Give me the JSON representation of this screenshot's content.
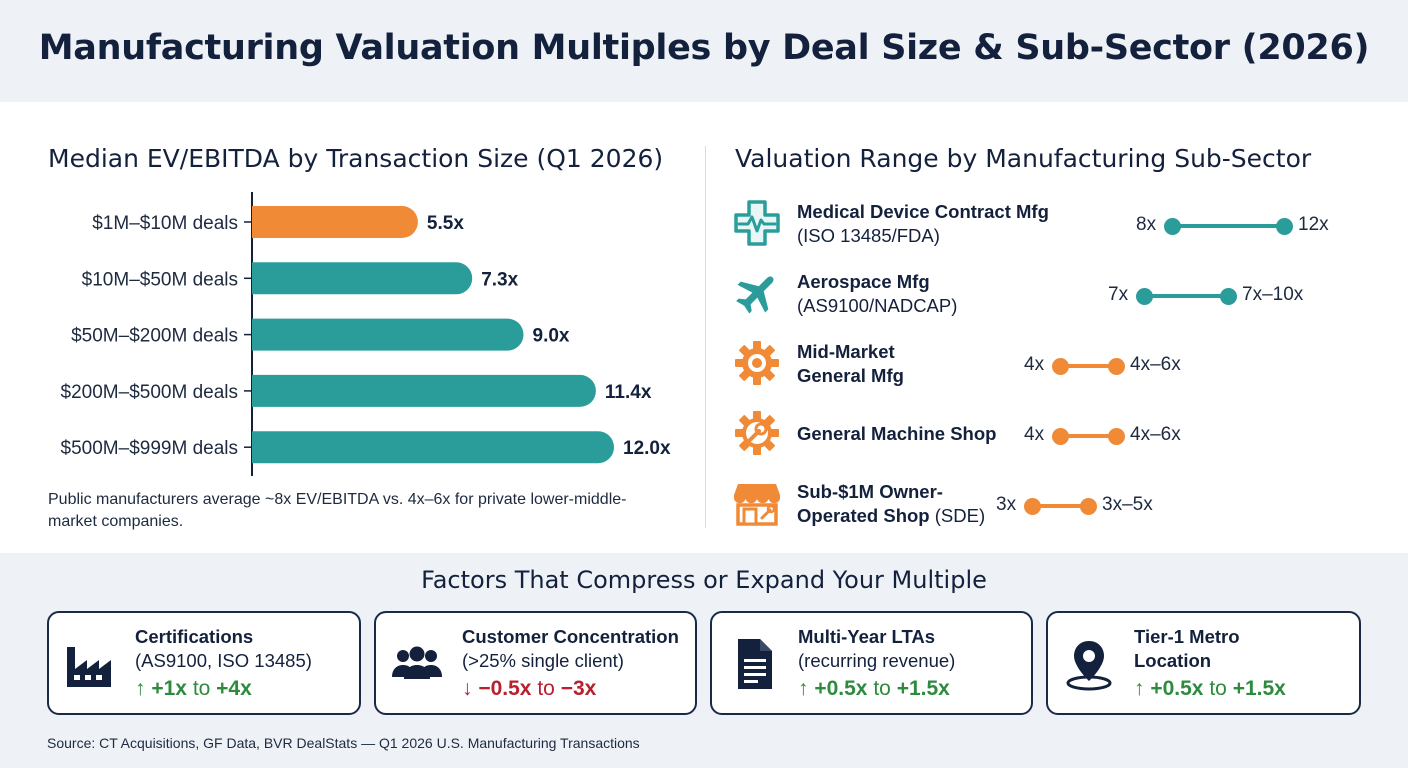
{
  "title": "Manufacturing Valuation Multiples by Deal Size & Sub-Sector (2026)",
  "colors": {
    "navy": "#14213d",
    "teal": "#2a9d9a",
    "orange": "#f08a36",
    "green": "#2e8b3e",
    "red": "#b8202e",
    "band": "#eef2f7"
  },
  "chart_data": [
    {
      "type": "bar",
      "orientation": "horizontal",
      "title": "Median EV/EBITDA by Transaction Size (Q1 2026)",
      "categories": [
        "$1M–$10M deals",
        "$10M–$50M deals",
        "$50M–$200M deals",
        "$200M–$500M deals",
        "$500M–$999M deals"
      ],
      "values": [
        5.5,
        7.3,
        9.0,
        11.4,
        12.0
      ],
      "value_labels": [
        "5.5x",
        "7.3x",
        "9.0x",
        "11.4x",
        "12.0x"
      ],
      "bar_colors": [
        "#f08a36",
        "#2a9d9a",
        "#2a9d9a",
        "#2a9d9a",
        "#2a9d9a"
      ],
      "xlim": [
        0,
        12
      ],
      "grid": false,
      "legend": "none"
    },
    {
      "type": "range",
      "title": "Valuation Range by Manufacturing Sub-Sector",
      "series": [
        {
          "name": "Medical Device Contract Mfg",
          "detail": "(ISO 13485/FDA)",
          "icon": "medical-cross-icon",
          "low": 8,
          "high": 12,
          "low_label": "8x",
          "high_label": "12x",
          "color": "#2a9d9a"
        },
        {
          "name": "Aerospace Mfg",
          "detail": "(AS9100/NADCAP)",
          "icon": "airplane-icon",
          "low": 7,
          "high": 10,
          "low_label": "7x",
          "high_label": "7x–10x",
          "color": "#2a9d9a"
        },
        {
          "name": "Mid-Market",
          "name2": "General Mfg",
          "detail": "",
          "icon": "gear-icon",
          "low": 4,
          "high": 6,
          "low_label": "4x",
          "high_label": "4x–6x",
          "color": "#f08a36"
        },
        {
          "name": "General Machine Shop",
          "detail": "",
          "icon": "gear-wrench-icon",
          "low": 4,
          "high": 6,
          "low_label": "4x",
          "high_label": "4x–6x",
          "color": "#f08a36"
        },
        {
          "name": "Sub-$1M Owner-",
          "name2": "Operated Shop",
          "detail": "(SDE)",
          "icon": "storefront-icon",
          "low": 3,
          "high": 5,
          "low_label": "3x",
          "high_label": "3x–5x",
          "color": "#f08a36"
        }
      ]
    }
  ],
  "note": "Public manufacturers average ~8x EV/EBITDA vs. 4x–6x for private lower-middle-market companies.",
  "factors": {
    "title": "Factors That Compress or Expand Your Multiple",
    "cards": [
      {
        "title": "Certifications",
        "subtitle": "(AS9100, ISO 13485)",
        "arrow": "↑",
        "from": "+1x",
        "to_word": "to",
        "to": "+4x",
        "direction": "up",
        "icon": "factory-icon"
      },
      {
        "title": "Customer Concentration",
        "subtitle": "(>25% single client)",
        "arrow": "↓",
        "from": "−0.5x",
        "to_word": "to",
        "to": "−3x",
        "direction": "down",
        "icon": "people-group-icon"
      },
      {
        "title": "Multi-Year LTAs",
        "subtitle": "(recurring revenue)",
        "arrow": "↑",
        "from": "+0.5x",
        "to_word": "to",
        "to": "+1.5x",
        "direction": "up",
        "icon": "document-icon"
      },
      {
        "title": "Tier-1 Metro",
        "subtitle": "Location",
        "arrow": "↑",
        "from": "+0.5x",
        "to_word": "to",
        "to": "+1.5x",
        "direction": "up",
        "icon": "location-pin-icon"
      }
    ]
  },
  "source": "Source: CT Acquisitions, GF Data, BVR DealStats — Q1 2026 U.S. Manufacturing Transactions"
}
